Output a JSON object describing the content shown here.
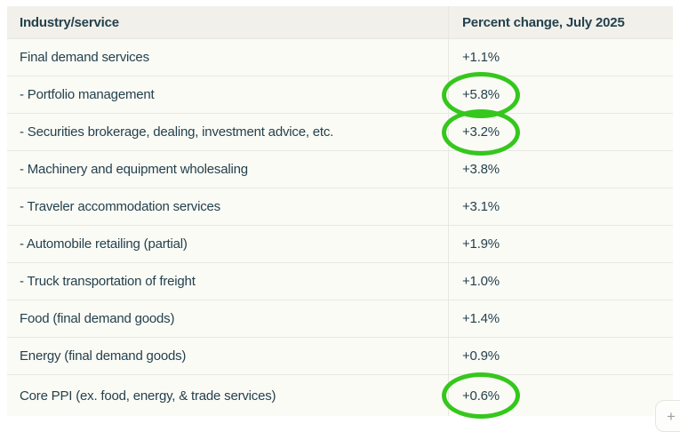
{
  "colors": {
    "page_bg": "#ffffff",
    "header_bg": "#f1f0ea",
    "row_bg": "#fbfbf6",
    "border": "#e8e7e1",
    "ink": "#24414d",
    "green": "#35c71d"
  },
  "header": {
    "columns": [
      {
        "label": "Industry/service"
      },
      {
        "label": "Percent change, July 2025"
      }
    ]
  },
  "table": {
    "rows": [
      {
        "industry": "Final demand services",
        "value": "+1.1%",
        "circled": false
      },
      {
        "industry": "- Portfolio management",
        "value": "+5.8%",
        "circled": true
      },
      {
        "industry": "- Securities brokerage, dealing, investment advice, etc.",
        "value": "+3.2%",
        "circled": true
      },
      {
        "industry": "- Machinery and equipment wholesaling",
        "value": "+3.8%",
        "circled": false
      },
      {
        "industry": "- Traveler accommodation services",
        "value": "+3.1%",
        "circled": false
      },
      {
        "industry": "- Automobile retailing (partial)",
        "value": "+1.9%",
        "circled": false
      },
      {
        "industry": "- Truck transportation of freight",
        "value": "+1.0%",
        "circled": false
      },
      {
        "industry": "Food (final demand goods)",
        "value": "+1.4%",
        "circled": false
      },
      {
        "industry": "Energy (final demand goods)",
        "value": "+0.9%",
        "circled": false
      },
      {
        "industry": "Core PPI (ex. food, energy, & trade services)",
        "value": "+0.6%",
        "circled": true
      }
    ]
  },
  "controls": {
    "expand_button_glyph": "+"
  },
  "chart_data": {
    "type": "table",
    "columns": [
      "Industry/service",
      "Percent change, July 2025"
    ],
    "rows": [
      [
        "Final demand services",
        "+1.1%"
      ],
      [
        "- Portfolio management",
        "+5.8%"
      ],
      [
        "- Securities brokerage, dealing, investment advice, etc.",
        "+3.2%"
      ],
      [
        "- Machinery and equipment wholesaling",
        "+3.8%"
      ],
      [
        "- Traveler accommodation services",
        "+3.1%"
      ],
      [
        "- Automobile retailing (partial)",
        "+1.9%"
      ],
      [
        "- Truck transportation of freight",
        "+1.0%"
      ],
      [
        "Food (final demand goods)",
        "+1.4%"
      ],
      [
        "Energy (final demand goods)",
        "+0.9%"
      ],
      [
        "Core PPI (ex. food, energy, & trade services)",
        "+0.6%"
      ]
    ],
    "values_numeric": [
      1.1,
      5.8,
      3.2,
      3.8,
      3.1,
      1.9,
      1.0,
      1.4,
      0.9,
      0.6
    ],
    "annotated_green_circle_values": [
      "+5.8%",
      "+3.2%",
      "+0.6%"
    ],
    "annotation_color": "#35c71d"
  }
}
